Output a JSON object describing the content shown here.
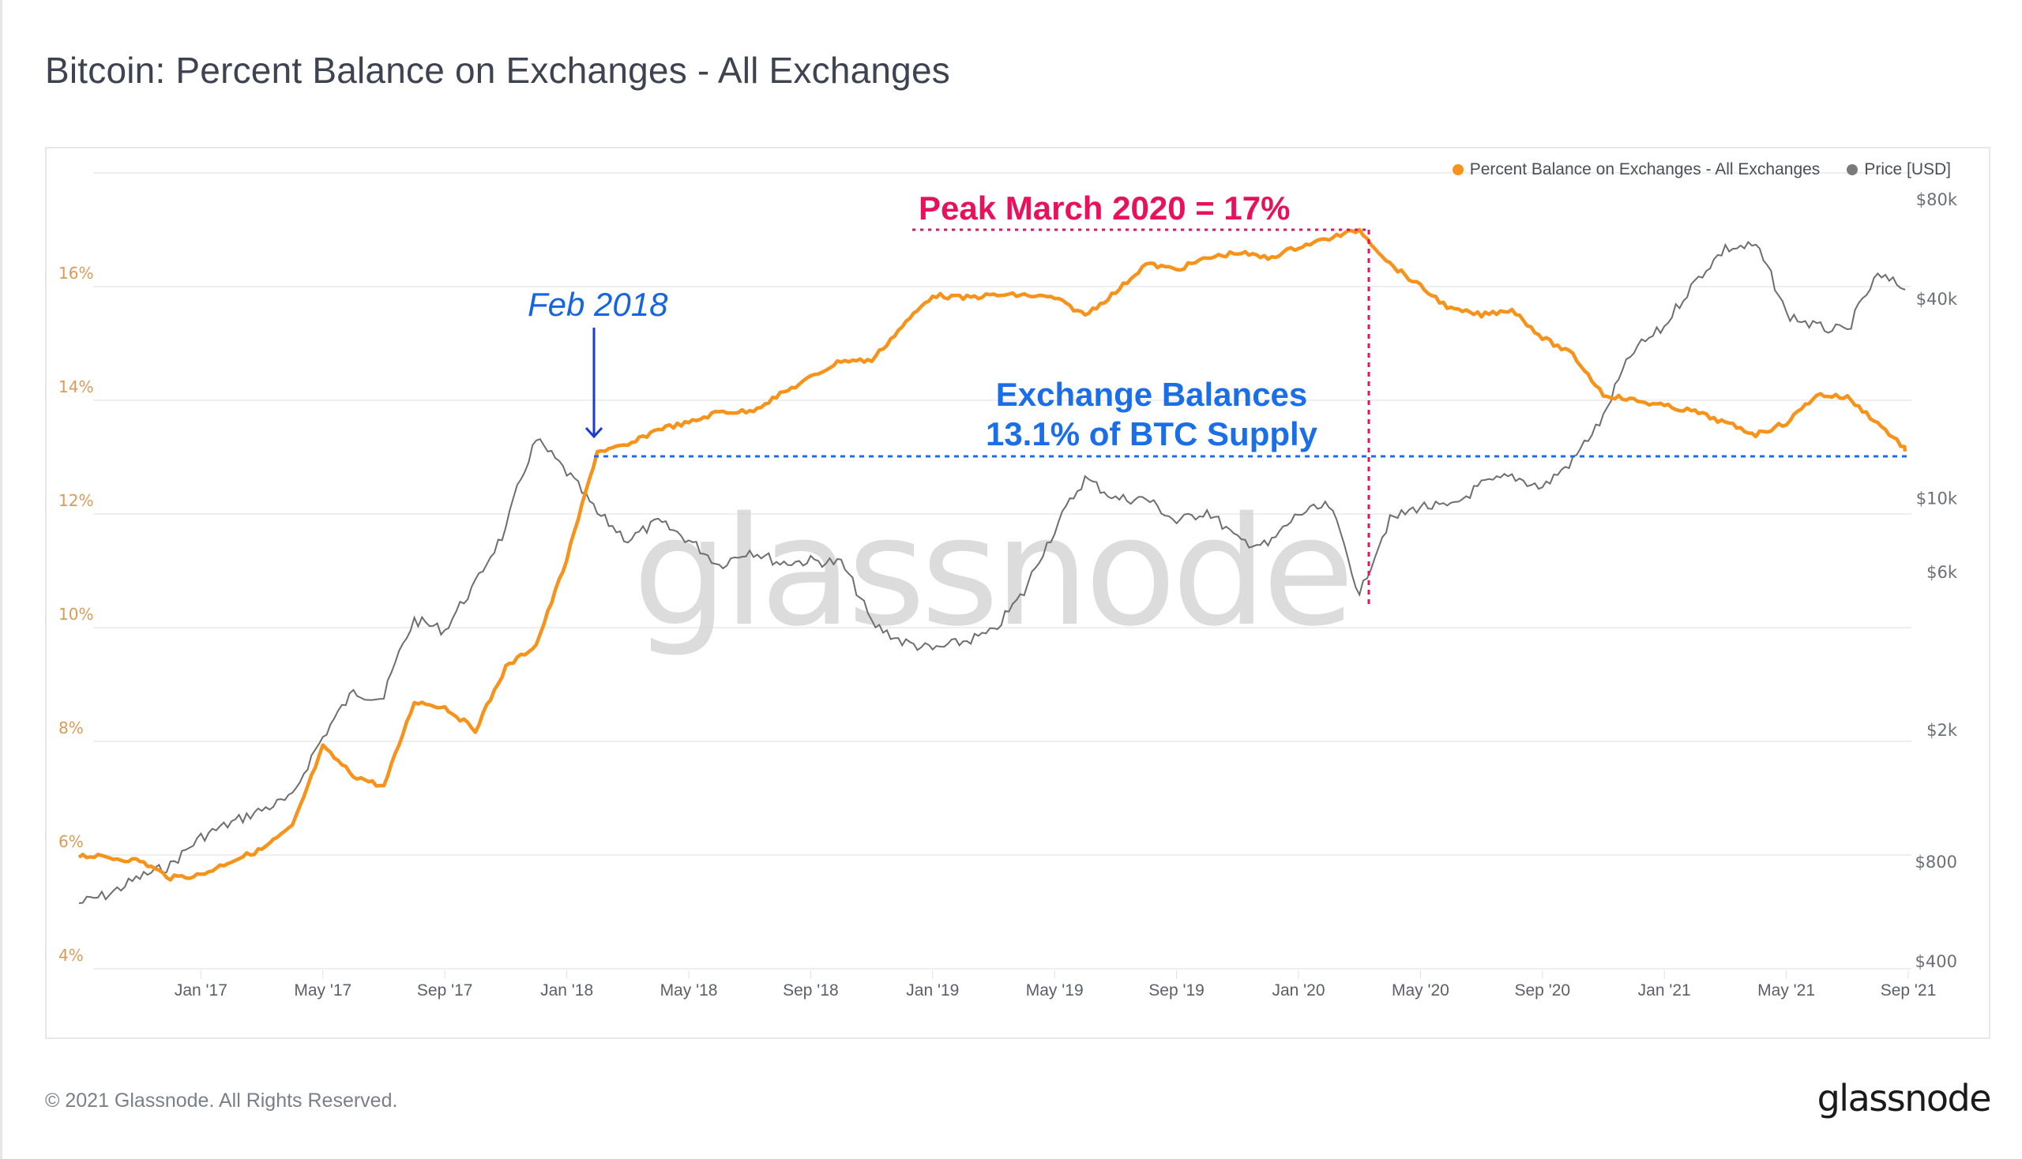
{
  "title": "Bitcoin: Percent Balance on Exchanges - All Exchanges",
  "footer": {
    "copyright": "© 2021 Glassnode. All Rights Reserved.",
    "logo": "glassnode"
  },
  "watermark": "glassnode",
  "legend": [
    {
      "label": "Percent Balance on Exchanges - All Exchanges",
      "color": "#f7931a"
    },
    {
      "label": "Price [USD]",
      "color": "#7a7a7a"
    }
  ],
  "annotations": {
    "peak_label": "Peak March 2020 = 17%",
    "peak_color": "#e8125c",
    "feb_label": "Feb 2018",
    "feb_color": "#1565e0",
    "arrow_color": "#1a3ad6",
    "balance_line1": "Exchange Balances",
    "balance_line2": "13.1% of BTC Supply",
    "balance_color": "#1a6ee8"
  },
  "colors": {
    "balance": "#f7931a",
    "price": "#6e6e6e",
    "grid": "#efefef",
    "left_tick": "#d99b5a",
    "right_tick": "#6b6f76",
    "x_tick": "#5b6068"
  },
  "chart_data": {
    "type": "line",
    "title": "Bitcoin: Percent Balance on Exchanges - All Exchanges",
    "xlabel": "",
    "ylabel_left": "Percent Balance on Exchanges",
    "ylabel_right": "Price [USD]",
    "x_ticks": [
      "Jan '17",
      "May '17",
      "Sep '17",
      "Jan '18",
      "May '18",
      "Sep '18",
      "Jan '19",
      "May '19",
      "Sep '19",
      "Jan '20",
      "May '20",
      "Sep '20",
      "Jan '21",
      "May '21",
      "Sep '21"
    ],
    "y_left_ticks": [
      "4%",
      "6%",
      "8%",
      "10%",
      "12%",
      "14%",
      "16%"
    ],
    "y_left_range": [
      4,
      18
    ],
    "y_right_ticks": [
      "$400",
      "$800",
      "$2k",
      "$6k",
      "$10k",
      "$40k",
      "$80k"
    ],
    "y_right_scale": "log",
    "y_right_range": [
      400,
      80000
    ],
    "grid": true,
    "legend_position": "top-right",
    "x": [
      "2016-09",
      "2016-10",
      "2016-11",
      "2016-12",
      "2017-01",
      "2017-02",
      "2017-03",
      "2017-04",
      "2017-05",
      "2017-06",
      "2017-07",
      "2017-08",
      "2017-09",
      "2017-10",
      "2017-11",
      "2017-12",
      "2018-01",
      "2018-02",
      "2018-03",
      "2018-04",
      "2018-05",
      "2018-06",
      "2018-07",
      "2018-08",
      "2018-09",
      "2018-10",
      "2018-11",
      "2018-12",
      "2019-01",
      "2019-02",
      "2019-03",
      "2019-04",
      "2019-05",
      "2019-06",
      "2019-07",
      "2019-08",
      "2019-09",
      "2019-10",
      "2019-11",
      "2019-12",
      "2020-01",
      "2020-02",
      "2020-03",
      "2020-04",
      "2020-05",
      "2020-06",
      "2020-07",
      "2020-08",
      "2020-09",
      "2020-10",
      "2020-11",
      "2020-12",
      "2021-01",
      "2021-02",
      "2021-03",
      "2021-04",
      "2021-05",
      "2021-06",
      "2021-07",
      "2021-08",
      "2021-09"
    ],
    "series": [
      {
        "name": "Percent Balance on Exchanges - All Exchanges",
        "axis": "left",
        "unit": "%",
        "values": [
          6.0,
          5.95,
          5.9,
          5.6,
          5.65,
          5.9,
          6.1,
          6.5,
          7.9,
          7.4,
          7.2,
          8.7,
          8.6,
          8.2,
          9.3,
          9.7,
          11.2,
          13.1,
          13.2,
          13.5,
          13.6,
          13.8,
          13.8,
          14.1,
          14.4,
          14.7,
          14.7,
          15.3,
          15.85,
          15.8,
          15.85,
          15.85,
          15.8,
          15.5,
          15.9,
          16.4,
          16.3,
          16.5,
          16.6,
          16.5,
          16.7,
          16.85,
          17.0,
          16.4,
          16.0,
          15.6,
          15.5,
          15.6,
          15.1,
          14.8,
          14.1,
          14.0,
          13.9,
          13.8,
          13.6,
          13.4,
          13.6,
          14.1,
          14.05,
          13.6,
          13.1
        ]
      },
      {
        "name": "Price [USD]",
        "axis": "right",
        "unit": "USD",
        "values": [
          600,
          640,
          720,
          780,
          950,
          1050,
          1150,
          1250,
          1900,
          2600,
          2500,
          4300,
          4000,
          5500,
          8000,
          15000,
          12000,
          9000,
          7500,
          8500,
          7500,
          6300,
          7000,
          6400,
          6500,
          6400,
          4200,
          3700,
          3500,
          3700,
          3950,
          5200,
          8000,
          11500,
          10000,
          10000,
          8500,
          9200,
          7500,
          7200,
          9000,
          9500,
          5000,
          8600,
          9500,
          9400,
          11000,
          11700,
          10800,
          13000,
          17500,
          28000,
          33000,
          45000,
          57000,
          58000,
          36000,
          33000,
          32000,
          47000,
          43000
        ]
      }
    ],
    "annotations": [
      {
        "text": "Peak March 2020 = 17%",
        "x": "2020-03",
        "y": 17.0
      },
      {
        "text": "Feb 2018",
        "x": "2018-02",
        "y": 13.1
      },
      {
        "text": "Exchange Balances 13.1% of BTC Supply",
        "y": 13.1
      }
    ]
  }
}
